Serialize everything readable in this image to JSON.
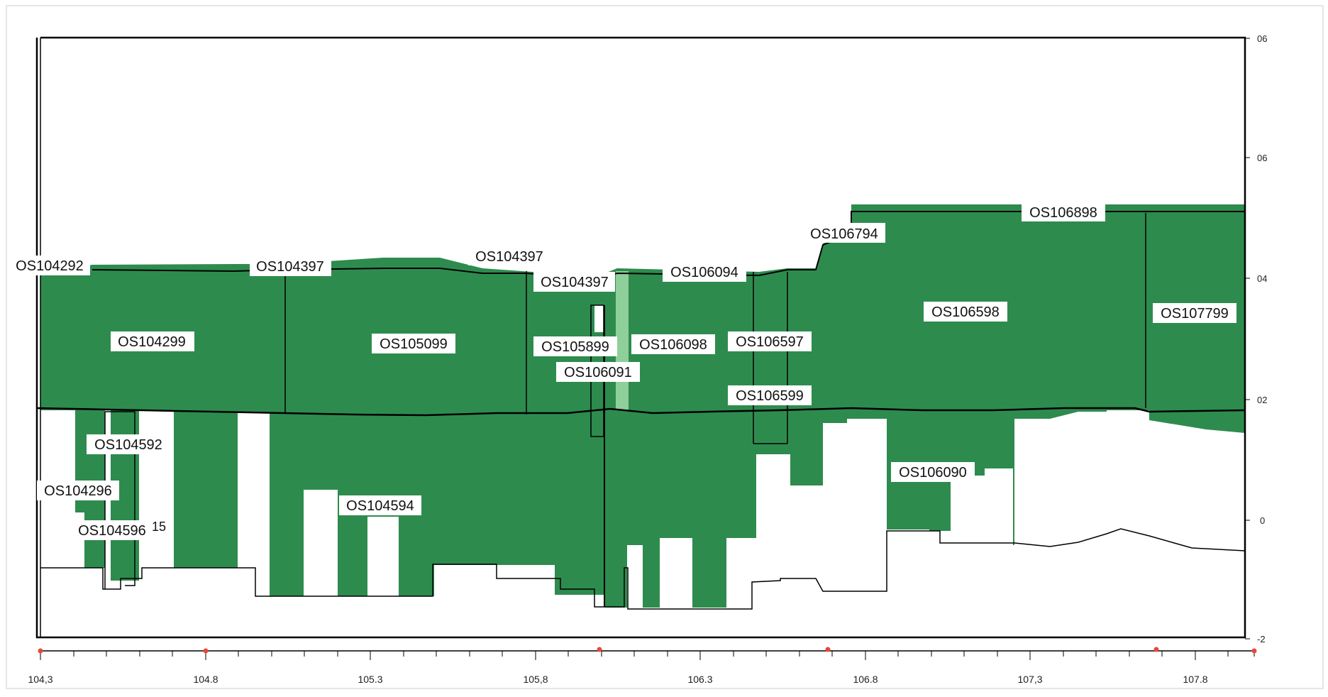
{
  "colors": {
    "fill": "#2e8b4e",
    "fill_light": "#8fcf9a",
    "line": "#000000",
    "background": "#ffffff",
    "tick_marker": "#e8483a"
  },
  "chart_data": {
    "type": "area",
    "x_tick_labels": [
      "104,3",
      "104.8",
      "105.3",
      "105,8",
      "106.3",
      "106.8",
      "107,3",
      "107.8"
    ],
    "y_tick_labels": [
      "06",
      "06",
      "04",
      "02",
      "0",
      "-2"
    ],
    "section_labels": [
      "OS104292",
      "OS104397",
      "OS104397",
      "OS104397",
      "OS106094",
      "OS106794",
      "OS106898",
      "OS104299",
      "OS105099",
      "OS105899",
      "OS106098",
      "OS106597",
      "OS106598",
      "OS107799",
      "OS106091",
      "OS106599",
      "OS104592",
      "OS104296",
      "OS104596",
      "OS104594",
      "OS106090"
    ],
    "fragment_label": "15"
  }
}
